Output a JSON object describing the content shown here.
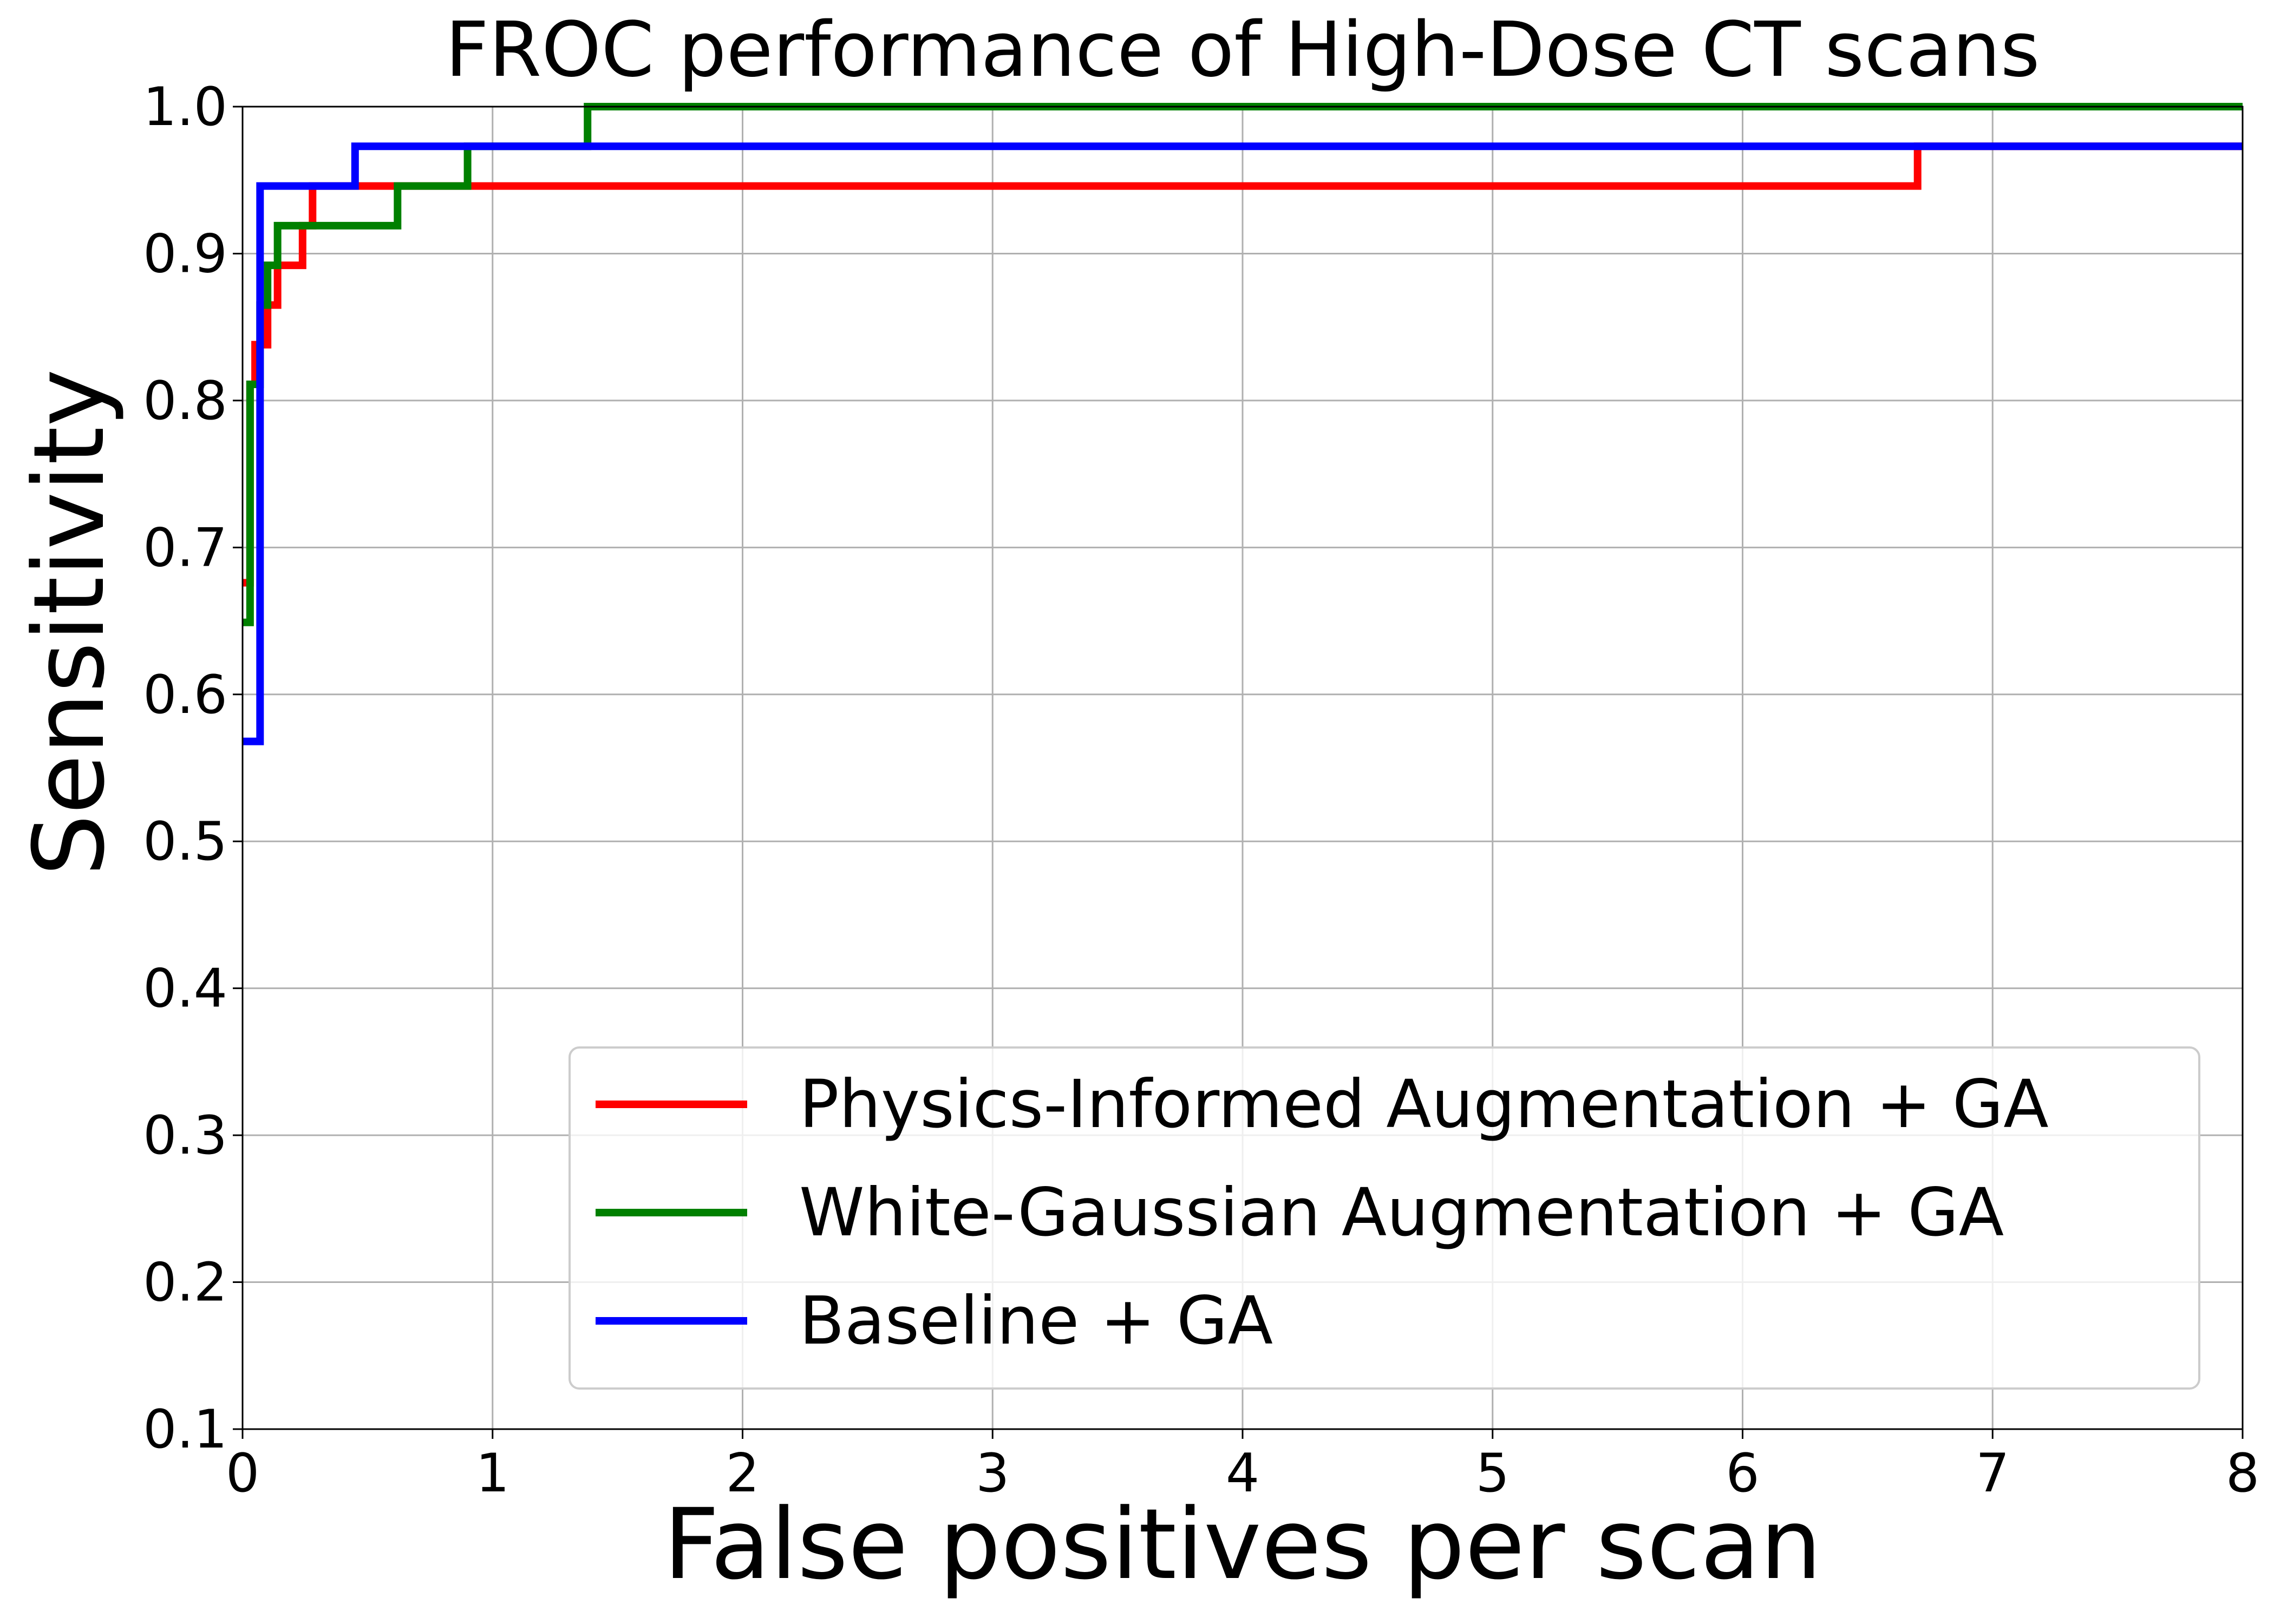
{
  "chart_data": {
    "type": "line",
    "title": "FROC performance of High-Dose CT scans",
    "xlabel": "False positives per scan",
    "ylabel": "Sensitivity",
    "xlim": [
      0,
      8
    ],
    "ylim": [
      0.1,
      1.0
    ],
    "xticks": [
      0,
      1,
      2,
      3,
      4,
      5,
      6,
      7,
      8
    ],
    "xtick_labels": [
      "0",
      "1",
      "2",
      "3",
      "4",
      "5",
      "6",
      "7",
      "8"
    ],
    "yticks": [
      0.1,
      0.2,
      0.3,
      0.4,
      0.5,
      0.6,
      0.7,
      0.8,
      0.9,
      1.0
    ],
    "ytick_labels": [
      "0.1",
      "0.2",
      "0.3",
      "0.4",
      "0.5",
      "0.6",
      "0.7",
      "0.8",
      "0.9",
      "1.0"
    ],
    "grid": true,
    "legend_position": "lower-right",
    "step": "post",
    "series": [
      {
        "name": "Physics-Informed Augmentation + GA",
        "color": "#ff0000",
        "x": [
          0.0,
          0.03,
          0.05,
          0.1,
          0.14,
          0.24,
          0.28,
          6.7,
          8.0
        ],
        "y": [
          0.676,
          0.811,
          0.838,
          0.865,
          0.892,
          0.919,
          0.946,
          0.973,
          0.973
        ]
      },
      {
        "name": "White-Gaussian Augmentation + GA",
        "color": "#008000",
        "x": [
          0.0,
          0.03,
          0.07,
          0.1,
          0.14,
          0.62,
          0.9,
          1.38,
          8.0
        ],
        "y": [
          0.649,
          0.811,
          0.865,
          0.892,
          0.919,
          0.946,
          0.973,
          1.0,
          1.0
        ]
      },
      {
        "name": "Baseline + GA",
        "color": "#0000ff",
        "x": [
          0.0,
          0.07,
          0.45,
          8.0
        ],
        "y": [
          0.568,
          0.946,
          0.973,
          0.973
        ]
      }
    ]
  }
}
